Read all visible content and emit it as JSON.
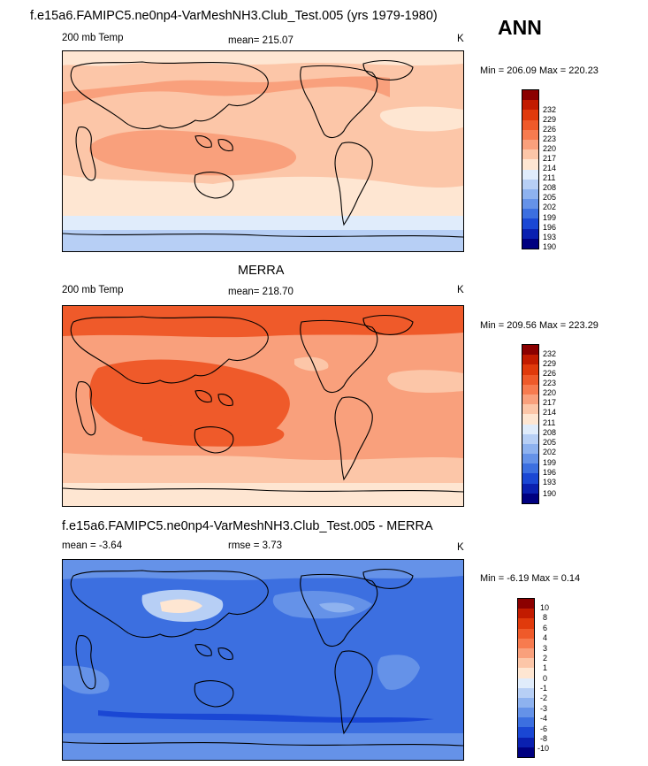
{
  "main_title": "f.e15a6.FAMIPC5.ne0np4-VarMeshNH3.Club_Test.005 (yrs 1979-1980)",
  "season": "ANN",
  "panels": [
    {
      "id": "model",
      "header": "",
      "left_label": "200 mb Temp",
      "center_label": "mean= 215.07",
      "units": "K",
      "min_max": "Min = 206.09 Max = 220.23",
      "colorbar": {
        "labels": [
          "232",
          "229",
          "226",
          "223",
          "220",
          "217",
          "214",
          "211",
          "208",
          "205",
          "202",
          "199",
          "196",
          "193",
          "190"
        ],
        "colors": [
          "#8b0000",
          "#c21b00",
          "#e03a0c",
          "#ef5a2a",
          "#f77b4f",
          "#f9a07c",
          "#fcc6a8",
          "#fee6d2",
          "#e0ecfb",
          "#b7cff5",
          "#8eb2ef",
          "#6592e8",
          "#3c6fe0",
          "#1a47d4",
          "#0a20b0",
          "#000080"
        ]
      }
    },
    {
      "id": "obs",
      "header": "MERRA",
      "left_label": "200 mb Temp",
      "center_label": "mean= 218.70",
      "units": "K",
      "min_max": "Min = 209.56 Max = 223.29",
      "colorbar": {
        "labels": [
          "232",
          "229",
          "226",
          "223",
          "220",
          "217",
          "214",
          "211",
          "208",
          "205",
          "202",
          "199",
          "196",
          "193",
          "190"
        ],
        "colors": [
          "#8b0000",
          "#c21b00",
          "#e03a0c",
          "#ef5a2a",
          "#f77b4f",
          "#f9a07c",
          "#fcc6a8",
          "#fee6d2",
          "#e0ecfb",
          "#b7cff5",
          "#8eb2ef",
          "#6592e8",
          "#3c6fe0",
          "#1a47d4",
          "#0a20b0",
          "#000080"
        ]
      }
    },
    {
      "id": "diff",
      "header": "f.e15a6.FAMIPC5.ne0np4-VarMeshNH3.Club_Test.005 - MERRA",
      "left_label": "mean =  -3.64",
      "center_label": "rmse =   3.73",
      "units": "K",
      "min_max": "Min =  -6.19 Max =   0.14",
      "colorbar": {
        "labels": [
          "10",
          "8",
          "6",
          "4",
          "3",
          "2",
          "1",
          "0",
          "-1",
          "-2",
          "-3",
          "-4",
          "-6",
          "-8",
          "-10"
        ],
        "colors": [
          "#8b0000",
          "#c21b00",
          "#e03a0c",
          "#ef5a2a",
          "#f77b4f",
          "#f9a07c",
          "#fcc6a8",
          "#fee6d2",
          "#e0ecfb",
          "#b7cff5",
          "#8eb2ef",
          "#6592e8",
          "#3c6fe0",
          "#1a47d4",
          "#0a20b0",
          "#000080"
        ]
      }
    }
  ]
}
